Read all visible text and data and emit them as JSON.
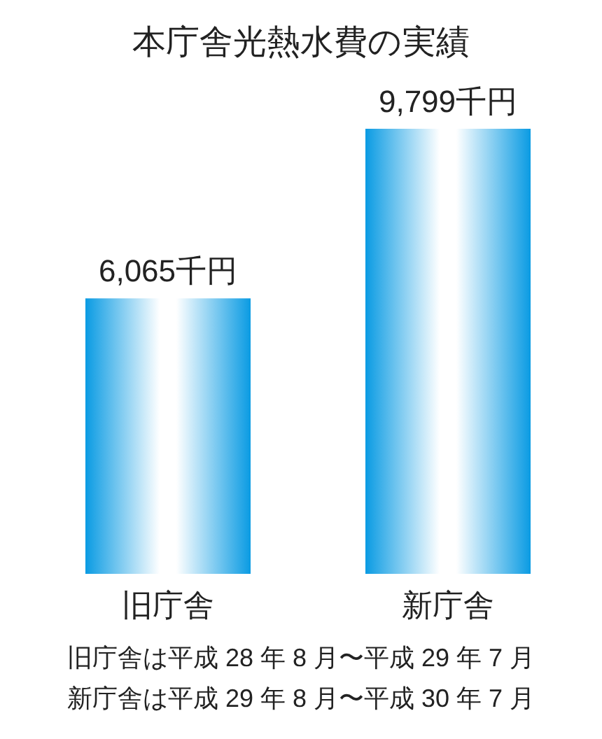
{
  "chart_data": {
    "type": "bar",
    "title": "本庁舎光熱水費の実績",
    "categories": [
      "旧庁舎",
      "新庁舎"
    ],
    "values": [
      6065,
      9799
    ],
    "value_labels": [
      "6,065千円",
      "9,799千円"
    ],
    "color": "#0a9be3",
    "annotations": [
      "旧庁舎は平成 28 年 8 月〜平成 29 年 7 月",
      "新庁舎は平成 29 年 8 月〜平成 30 年 7 月"
    ]
  }
}
